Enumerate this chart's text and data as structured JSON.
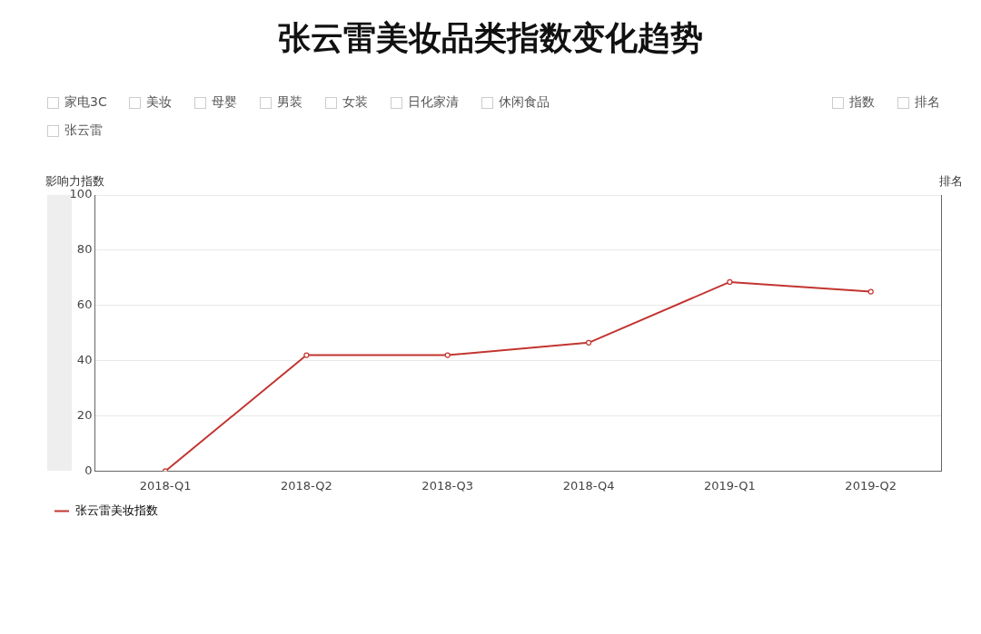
{
  "chart_data": {
    "type": "line",
    "title": "张云雷美妆品类指数变化趋势",
    "categories": [
      "2018-Q1",
      "2018-Q2",
      "2018-Q3",
      "2018-Q4",
      "2019-Q1",
      "2019-Q2"
    ],
    "series": [
      {
        "name": "张云雷美妆指数",
        "color": "#c23531",
        "values": [
          0,
          42,
          42,
          46.5,
          68.5,
          65
        ]
      }
    ],
    "ylabel": "影响力指数",
    "y2label": "排名",
    "ylim": [
      0,
      100
    ],
    "yticks": [
      0,
      20,
      40,
      60,
      80,
      100
    ],
    "grid": "y",
    "legend": "bottom left",
    "marker": "circle",
    "line_style": "solid",
    "annotations": [
      "家电3C",
      "美妆",
      "母婴",
      "男装",
      "女装",
      "日化家清",
      "休闲食品",
      "指数",
      "排名",
      "张云雷"
    ]
  }
}
